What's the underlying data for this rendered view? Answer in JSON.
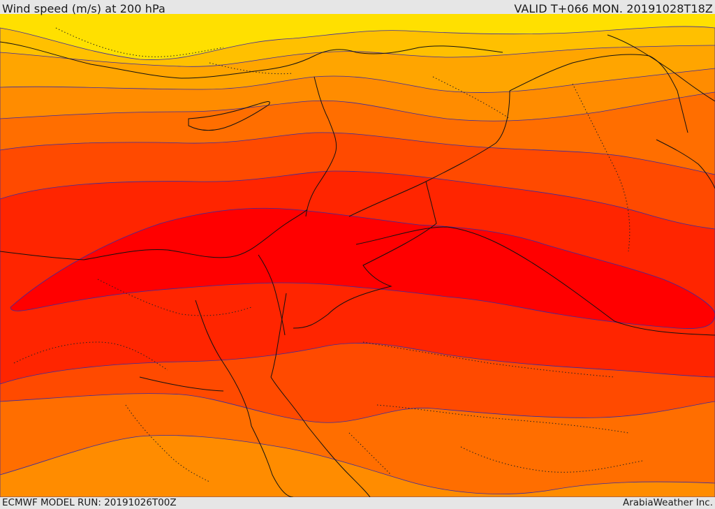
{
  "header": {
    "title": "Wind speed (m/s) at 200 hPa",
    "valid_time": "VALID T+066 MON. 20191028T18Z"
  },
  "footer": {
    "model_run": "ECMWF MODEL RUN: 20191026T00Z",
    "credit": "ArabiaWeather Inc."
  },
  "map": {
    "field": "wind speed at 200 hPa",
    "colors": {
      "band_lowest": "#ffe000",
      "band_2": "#ffc000",
      "band_3": "#ffa500",
      "band_4": "#ff8c00",
      "band_5": "#ff6e00",
      "band_6": "#ff4a00",
      "band_7": "#ff2500",
      "band_core": "#ff0000",
      "contour": "#3a2aa0",
      "coastline": "#111111",
      "border_dotted": "#222222"
    }
  }
}
